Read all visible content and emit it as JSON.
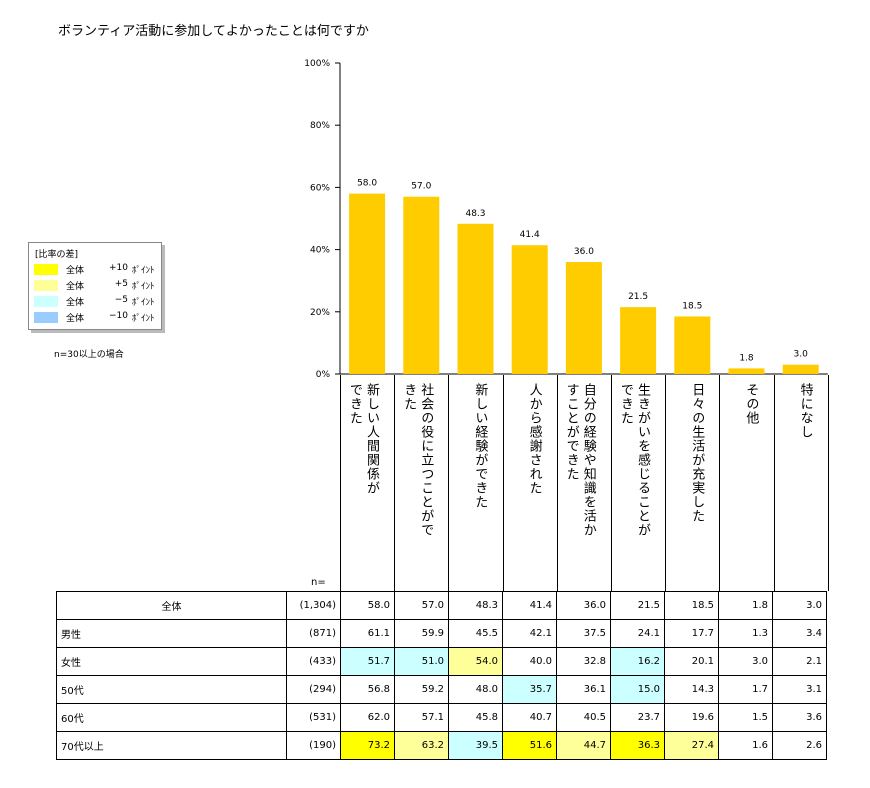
{
  "title": "ボランティア活動に参加してよかったことは何ですか",
  "legend": {
    "title": "[比率の差]",
    "items": [
      {
        "label": "全体",
        "value": "+10",
        "unit": "ﾎﾟｲﾝﾄ",
        "color": "#ffff00"
      },
      {
        "label": "全体",
        "value": "+5",
        "unit": "ﾎﾟｲﾝﾄ",
        "color": "#ffff99"
      },
      {
        "label": "全体",
        "value": "−5",
        "unit": "ﾎﾟｲﾝﾄ",
        "color": "#ccffff"
      },
      {
        "label": "全体",
        "value": "−10",
        "unit": "ﾎﾟｲﾝﾄ",
        "color": "#99ccff"
      }
    ]
  },
  "note": "n=30以上の場合",
  "n_label": "n=",
  "colors": {
    "bar": "#ffcc00",
    "plus10": "#ffff00",
    "plus5": "#ffff99",
    "minus5": "#ccffff",
    "minus10": "#99ccff"
  },
  "chart_data": {
    "type": "bar",
    "title": "ボランティア活動に参加してよかったことは何ですか",
    "categories": [
      "新しい人間関係ができた",
      "社会の役に立つことができた",
      "新しい経験ができた",
      "人から感謝された",
      "自分の経験や知識を活かすことができた",
      "生きがいを感じることができた",
      "日々の生活が充実した",
      "その他",
      "特になし"
    ],
    "category_lines": [
      [
        "新しい人間関係が",
        "できた"
      ],
      [
        "社会の役に立つことがで",
        "きた"
      ],
      [
        "新しい経験ができた"
      ],
      [
        "人から感謝された"
      ],
      [
        "自分の経験や知識を活か",
        "すことができた"
      ],
      [
        "生きがいを感じることが",
        "できた"
      ],
      [
        "日々の生活が充実した"
      ],
      [
        "その他"
      ],
      [
        "特になし"
      ]
    ],
    "values": [
      58.0,
      57.0,
      48.3,
      41.4,
      36.0,
      21.5,
      18.5,
      1.8,
      3.0
    ],
    "value_labels": [
      "58.0",
      "57.0",
      "48.3",
      "41.4",
      "36.0",
      "21.5",
      "18.5",
      "1.8",
      "3.0"
    ],
    "ylim": [
      0,
      100
    ],
    "yticks": [
      "0%",
      "20%",
      "40%",
      "60%",
      "80%",
      "100%"
    ],
    "ytick_values": [
      0,
      20,
      40,
      60,
      80,
      100
    ],
    "xlabel": "",
    "ylabel": "",
    "grid": false
  },
  "table": {
    "rows": [
      {
        "name": "全体",
        "n": "(1,304)",
        "values": [
          "58.0",
          "57.0",
          "48.3",
          "41.4",
          "36.0",
          "21.5",
          "18.5",
          "1.8",
          "3.0"
        ],
        "hl": [
          "",
          "",
          "",
          "",
          "",
          "",
          "",
          "",
          ""
        ]
      },
      {
        "name": "男性",
        "n": "(871)",
        "values": [
          "61.1",
          "59.9",
          "45.5",
          "42.1",
          "37.5",
          "24.1",
          "17.7",
          "1.3",
          "3.4"
        ],
        "hl": [
          "",
          "",
          "",
          "",
          "",
          "",
          "",
          "",
          ""
        ]
      },
      {
        "name": "女性",
        "n": "(433)",
        "values": [
          "51.7",
          "51.0",
          "54.0",
          "40.0",
          "32.8",
          "16.2",
          "20.1",
          "3.0",
          "2.1"
        ],
        "hl": [
          "minus5",
          "minus5",
          "plus5",
          "",
          "",
          "minus5",
          "",
          "",
          ""
        ]
      },
      {
        "name": "50代",
        "n": "(294)",
        "values": [
          "56.8",
          "59.2",
          "48.0",
          "35.7",
          "36.1",
          "15.0",
          "14.3",
          "1.7",
          "3.1"
        ],
        "hl": [
          "",
          "",
          "",
          "minus5",
          "",
          "minus5",
          "",
          "",
          ""
        ]
      },
      {
        "name": "60代",
        "n": "(531)",
        "values": [
          "62.0",
          "57.1",
          "45.8",
          "40.7",
          "40.5",
          "23.7",
          "19.6",
          "1.5",
          "3.6"
        ],
        "hl": [
          "",
          "",
          "",
          "",
          "",
          "",
          "",
          "",
          ""
        ]
      },
      {
        "name": "70代以上",
        "n": "(190)",
        "values": [
          "73.2",
          "63.2",
          "39.5",
          "51.6",
          "44.7",
          "36.3",
          "27.4",
          "1.6",
          "2.6"
        ],
        "hl": [
          "plus10",
          "plus5",
          "minus5",
          "plus10",
          "plus5",
          "plus10",
          "plus5",
          "",
          ""
        ]
      }
    ]
  }
}
